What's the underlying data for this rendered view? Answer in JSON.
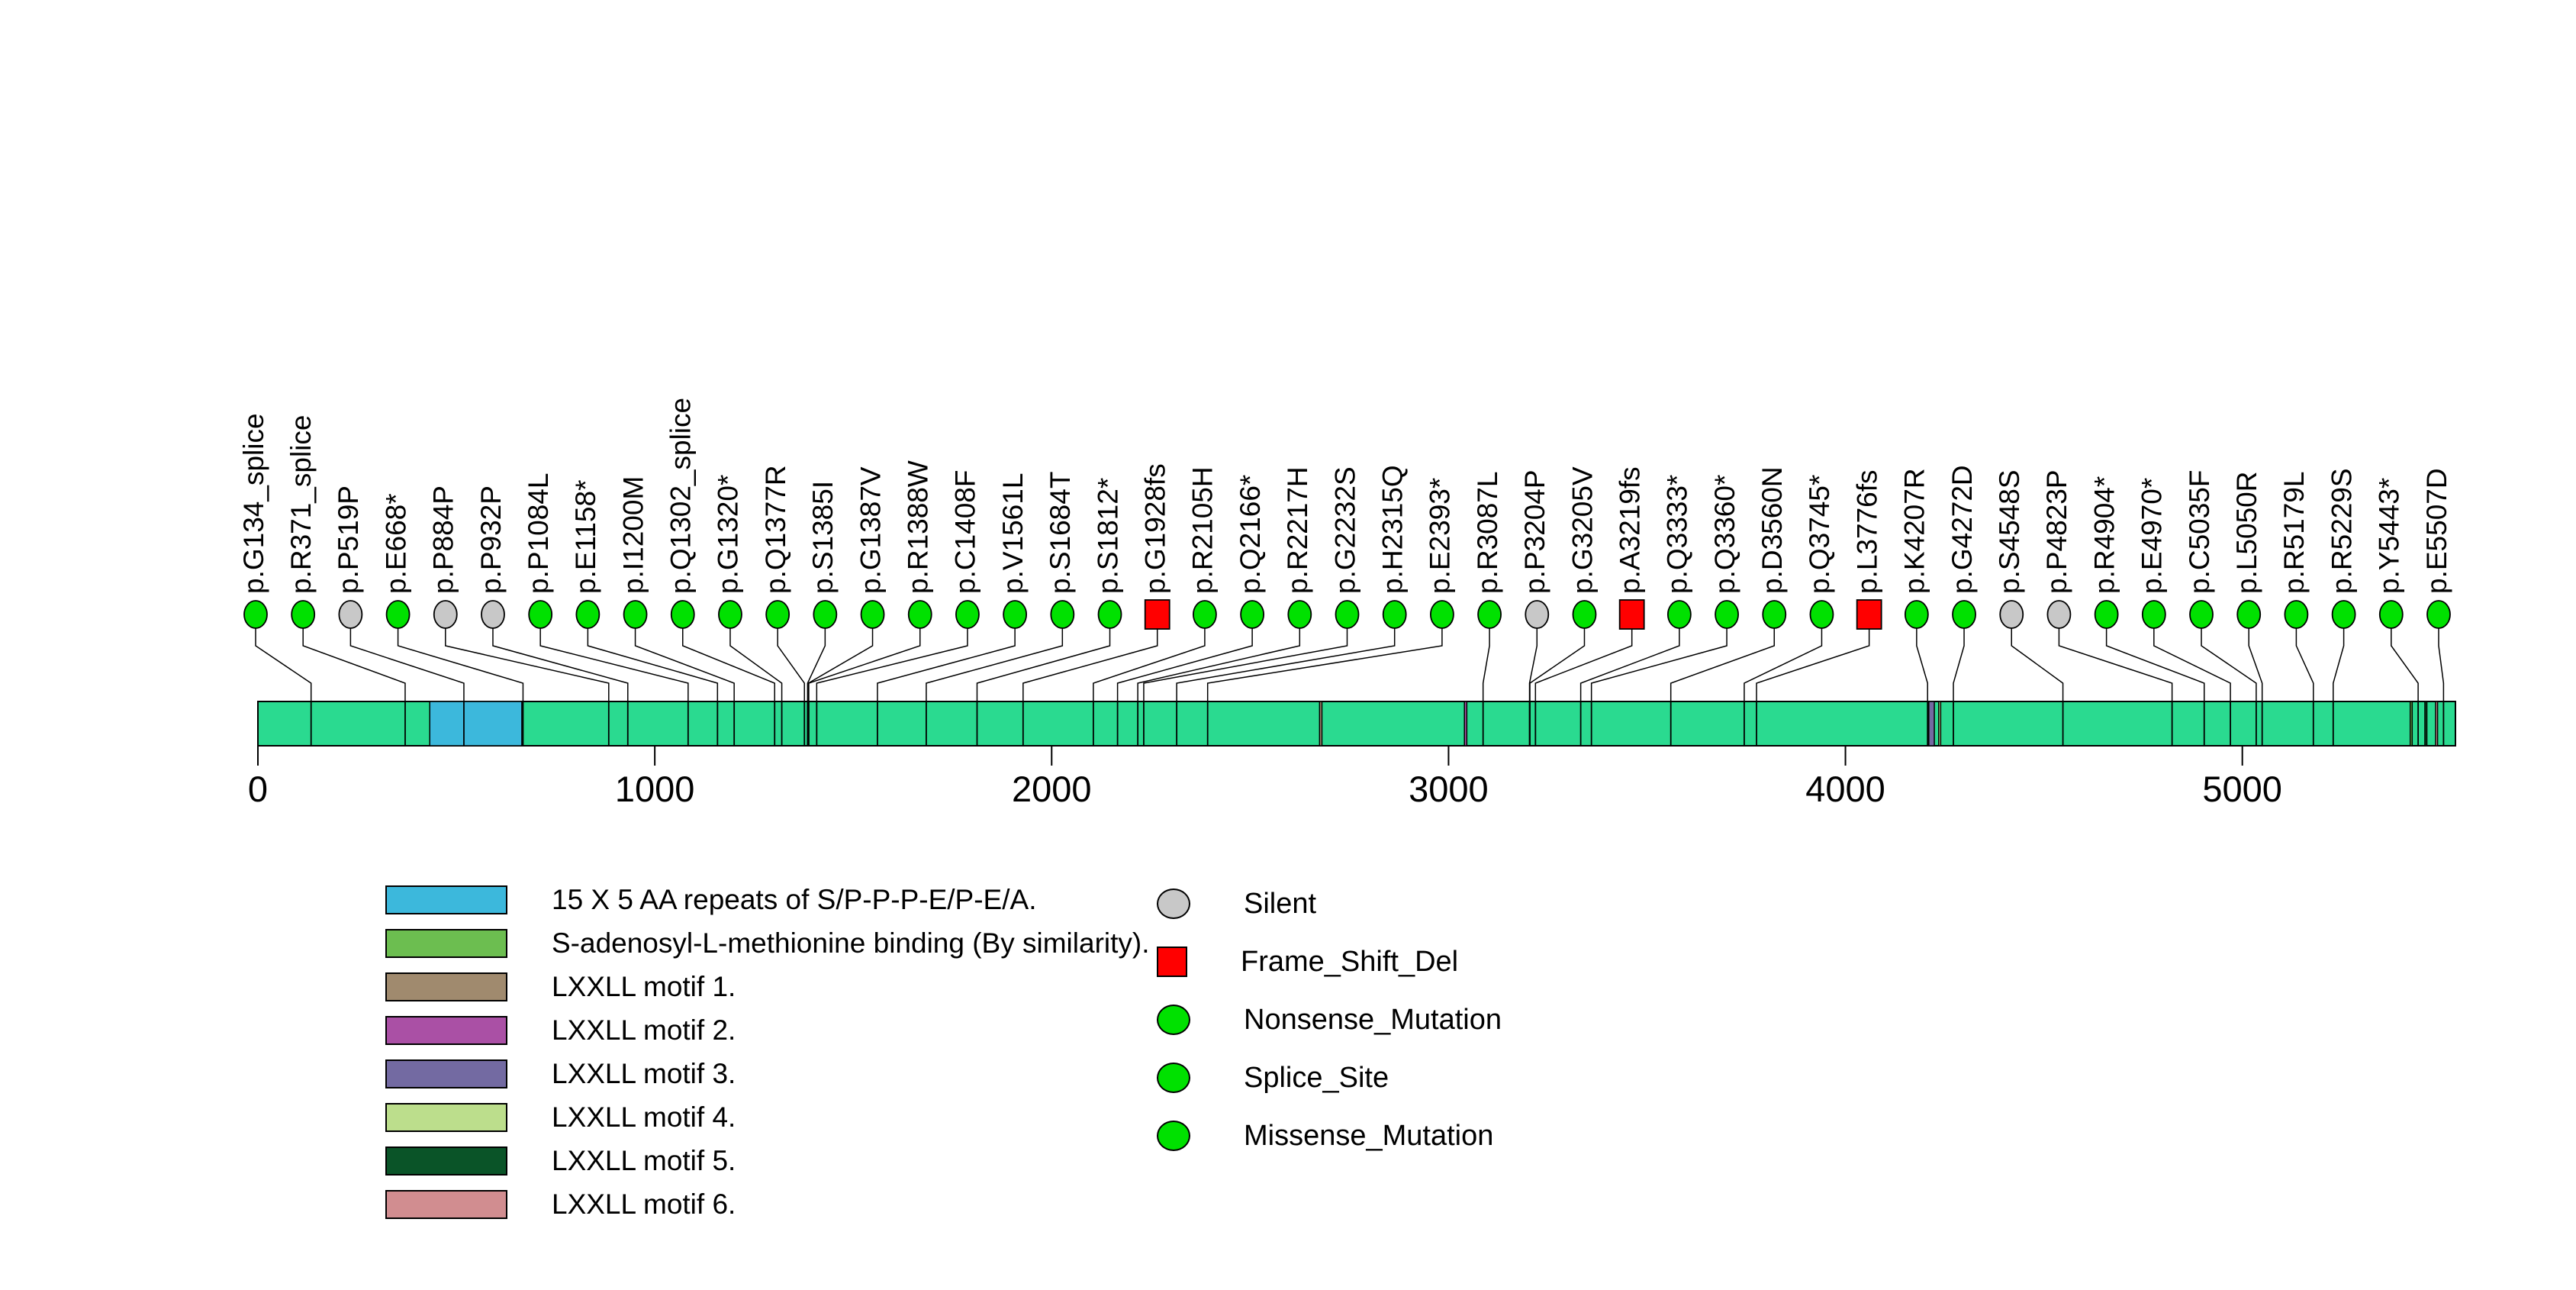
{
  "chart_data": {
    "type": "lollipop-mutation-plot",
    "title": "",
    "xlabel": "",
    "protein_length": 5537,
    "axis_ticks": [
      0,
      1000,
      2000,
      3000,
      4000,
      5000
    ],
    "xlim": [
      0,
      5537
    ],
    "grid": false,
    "bar_color": "#2ADA90",
    "marker_colors": {
      "Silent": "#C8C8C8",
      "Frame_Shift_Del": "#FF0000",
      "Nonsense_Mutation": "#00E100",
      "Splice_Site": "#00E100",
      "Missense_Mutation": "#00E100"
    },
    "marker_shapes": {
      "Silent": "circle",
      "Frame_Shift_Del": "square",
      "Nonsense_Mutation": "circle",
      "Splice_Site": "circle",
      "Missense_Mutation": "circle"
    },
    "domains": [
      {
        "label": "15 X 5 AA repeats of S/P-P-P-E/P-E/A.",
        "color": "#3CB8DC",
        "start": 433,
        "end": 665
      },
      {
        "label": "S-adenosyl-L-methionine binding (By similarity).",
        "color": "#6CBE50",
        "start": 5423,
        "end": 5428
      },
      {
        "label": "LXXLL motif 1.",
        "color": "#A08A6E",
        "start": 2675,
        "end": 2681
      },
      {
        "label": "LXXLL motif 2.",
        "color": "#AA50A5",
        "start": 3040,
        "end": 3046
      },
      {
        "label": "LXXLL motif 3.",
        "color": "#736AA2",
        "start": 4210,
        "end": 4224
      },
      {
        "label": "LXXLL motif 4.",
        "color": "#BCDE8C",
        "start": 4235,
        "end": 4240
      },
      {
        "label": "LXXLL motif 5.",
        "color": "#0A5428",
        "start": 5460,
        "end": 5465
      },
      {
        "label": "LXXLL motif 6.",
        "color": "#D18D90",
        "start": 5487,
        "end": 5492
      }
    ],
    "mutations": [
      {
        "label": "p.G134_splice",
        "pos": 134,
        "type": "Splice_Site"
      },
      {
        "label": "p.R371_splice",
        "pos": 371,
        "type": "Splice_Site"
      },
      {
        "label": "p.P519P",
        "pos": 519,
        "type": "Silent"
      },
      {
        "label": "p.E668*",
        "pos": 668,
        "type": "Nonsense_Mutation"
      },
      {
        "label": "p.P884P",
        "pos": 884,
        "type": "Silent"
      },
      {
        "label": "p.P932P",
        "pos": 932,
        "type": "Silent"
      },
      {
        "label": "p.P1084L",
        "pos": 1084,
        "type": "Missense_Mutation"
      },
      {
        "label": "p.E1158*",
        "pos": 1158,
        "type": "Nonsense_Mutation"
      },
      {
        "label": "p.I1200M",
        "pos": 1200,
        "type": "Missense_Mutation"
      },
      {
        "label": "p.Q1302_splice",
        "pos": 1302,
        "type": "Splice_Site"
      },
      {
        "label": "p.G1320*",
        "pos": 1320,
        "type": "Nonsense_Mutation"
      },
      {
        "label": "p.Q1377R",
        "pos": 1377,
        "type": "Missense_Mutation"
      },
      {
        "label": "p.S1385I",
        "pos": 1385,
        "type": "Missense_Mutation"
      },
      {
        "label": "p.G1387V",
        "pos": 1387,
        "type": "Missense_Mutation"
      },
      {
        "label": "p.R1388W",
        "pos": 1388,
        "type": "Missense_Mutation"
      },
      {
        "label": "p.C1408F",
        "pos": 1408,
        "type": "Missense_Mutation"
      },
      {
        "label": "p.V1561L",
        "pos": 1561,
        "type": "Missense_Mutation"
      },
      {
        "label": "p.S1684T",
        "pos": 1684,
        "type": "Missense_Mutation"
      },
      {
        "label": "p.S1812*",
        "pos": 1812,
        "type": "Nonsense_Mutation"
      },
      {
        "label": "p.G1928fs",
        "pos": 1928,
        "type": "Frame_Shift_Del"
      },
      {
        "label": "p.R2105H",
        "pos": 2105,
        "type": "Missense_Mutation"
      },
      {
        "label": "p.Q2166*",
        "pos": 2166,
        "type": "Nonsense_Mutation"
      },
      {
        "label": "p.R2217H",
        "pos": 2217,
        "type": "Missense_Mutation"
      },
      {
        "label": "p.G2232S",
        "pos": 2232,
        "type": "Missense_Mutation"
      },
      {
        "label": "p.H2315Q",
        "pos": 2315,
        "type": "Missense_Mutation"
      },
      {
        "label": "p.E2393*",
        "pos": 2393,
        "type": "Nonsense_Mutation"
      },
      {
        "label": "p.R3087L",
        "pos": 3087,
        "type": "Missense_Mutation"
      },
      {
        "label": "p.P3204P",
        "pos": 3204,
        "type": "Silent"
      },
      {
        "label": "p.G3205V",
        "pos": 3205,
        "type": "Missense_Mutation"
      },
      {
        "label": "p.A3219fs",
        "pos": 3219,
        "type": "Frame_Shift_Del"
      },
      {
        "label": "p.Q3333*",
        "pos": 3333,
        "type": "Nonsense_Mutation"
      },
      {
        "label": "p.Q3360*",
        "pos": 3360,
        "type": "Nonsense_Mutation"
      },
      {
        "label": "p.D3560N",
        "pos": 3560,
        "type": "Missense_Mutation"
      },
      {
        "label": "p.Q3745*",
        "pos": 3745,
        "type": "Nonsense_Mutation"
      },
      {
        "label": "p.L3776fs",
        "pos": 3776,
        "type": "Frame_Shift_Del"
      },
      {
        "label": "p.K4207R",
        "pos": 4207,
        "type": "Missense_Mutation"
      },
      {
        "label": "p.G4272D",
        "pos": 4272,
        "type": "Missense_Mutation"
      },
      {
        "label": "p.S4548S",
        "pos": 4548,
        "type": "Silent"
      },
      {
        "label": "p.P4823P",
        "pos": 4823,
        "type": "Silent"
      },
      {
        "label": "p.R4904*",
        "pos": 4904,
        "type": "Nonsense_Mutation"
      },
      {
        "label": "p.E4970*",
        "pos": 4970,
        "type": "Nonsense_Mutation"
      },
      {
        "label": "p.C5035F",
        "pos": 5035,
        "type": "Missense_Mutation"
      },
      {
        "label": "p.L5050R",
        "pos": 5050,
        "type": "Missense_Mutation"
      },
      {
        "label": "p.R5179L",
        "pos": 5179,
        "type": "Missense_Mutation"
      },
      {
        "label": "p.R5229S",
        "pos": 5229,
        "type": "Missense_Mutation"
      },
      {
        "label": "p.Y5443*",
        "pos": 5443,
        "type": "Nonsense_Mutation"
      },
      {
        "label": "p.E5507D",
        "pos": 5507,
        "type": "Missense_Mutation"
      }
    ],
    "legend_mutation_types": [
      {
        "label": "Silent",
        "color": "#C8C8C8",
        "shape": "circle"
      },
      {
        "label": "Frame_Shift_Del",
        "color": "#FF0000",
        "shape": "square"
      },
      {
        "label": "Nonsense_Mutation",
        "color": "#00E100",
        "shape": "circle"
      },
      {
        "label": "Splice_Site",
        "color": "#00E100",
        "shape": "circle"
      },
      {
        "label": "Missense_Mutation",
        "color": "#00E100",
        "shape": "circle"
      }
    ]
  },
  "layout_note_colors": {
    "stem": "#000000",
    "text": "#000000"
  }
}
